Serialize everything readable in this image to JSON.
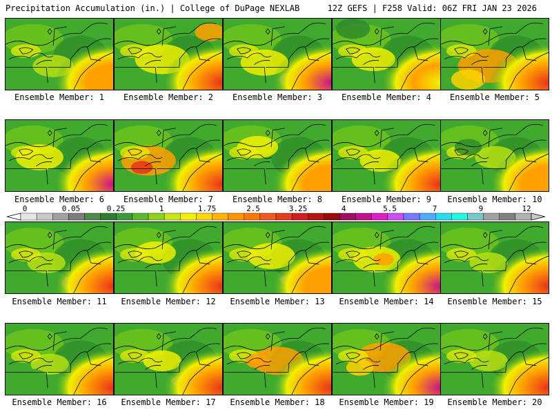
{
  "header": {
    "title": "Precipitation Accumulation (in.) | College of DuPage NEXLAB",
    "run_info": "12Z GEFS | F258 Valid: 06Z FRI JAN 23 2026"
  },
  "members": [
    "Ensemble Member: 1",
    "Ensemble Member: 2",
    "Ensemble Member: 3",
    "Ensemble Member: 4",
    "Ensemble Member: 5",
    "Ensemble Member: 6",
    "Ensemble Member: 7",
    "Ensemble Member: 8",
    "Ensemble Member: 9",
    "Ensemble Member: 10",
    "Ensemble Member: 11",
    "Ensemble Member: 12",
    "Ensemble Member: 13",
    "Ensemble Member: 14",
    "Ensemble Member: 15",
    "Ensemble Member: 16",
    "Ensemble Member: 17",
    "Ensemble Member: 18",
    "Ensemble Member: 19",
    "Ensemble Member: 20"
  ],
  "colorbar": {
    "labels": [
      "0",
      "0.05",
      "0.25",
      "1",
      "1.75",
      "2.5",
      "3.25",
      "4",
      "5.5",
      "7",
      "9",
      "12"
    ],
    "colors": [
      "#e6e6e6",
      "#c8c8c8",
      "#a0a0a0",
      "#7d7d7d",
      "#4e8a4e",
      "#2e7d32",
      "#3c9a3c",
      "#5cb82e",
      "#8cd21e",
      "#c8e614",
      "#f0f000",
      "#ffd700",
      "#ffb400",
      "#ff9600",
      "#ff7800",
      "#f05a1e",
      "#e63c1e",
      "#d21e1e",
      "#b41414",
      "#960a0a",
      "#a01060",
      "#c0108c",
      "#e01ec8",
      "#c850f0",
      "#7878ff",
      "#50aaff",
      "#28dcf0",
      "#1efadc",
      "#78c8c8",
      "#a0a0a0",
      "#808080",
      "#b0b0b0"
    ]
  },
  "map_palette": {
    "dark_green": "#2f8a2a",
    "green": "#3faa2e",
    "light_green": "#6cc41c",
    "yellow_green": "#b8e010",
    "yellow": "#f0f000",
    "gold": "#ffd200",
    "orange": "#ffa000",
    "red": "#e8321c",
    "magenta": "#c8108c",
    "gray": "#9a9a9a",
    "border": "#000000"
  }
}
